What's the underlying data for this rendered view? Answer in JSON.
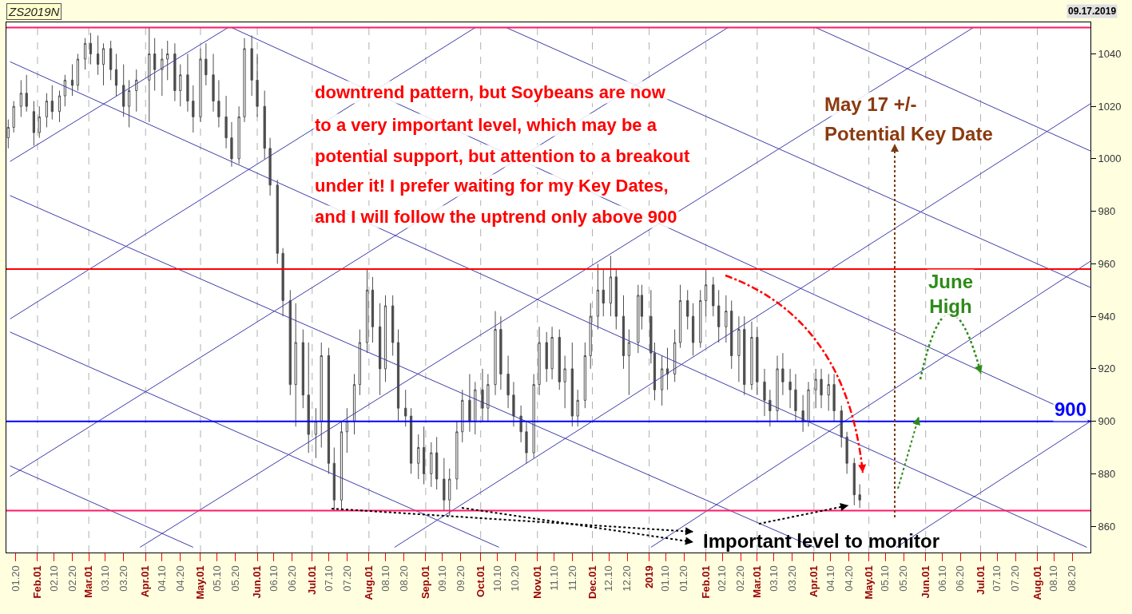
{
  "chart_data": {
    "type": "candlestick",
    "title": "ZS2019N",
    "annotations": [
      "downtrend pattern, but Soybeans are now",
      "to a very important level, which may be a",
      "potential support, but attention to a breakout",
      "under it! I prefer waiting for my Key Dates,",
      "and I will follow the uptrend only above 900",
      "May 17 +/-",
      "Potential Key Date",
      "June\nHigh",
      "Important level to monitor",
      "09.17.2019"
    ],
    "x": [
      "2018-01-16",
      "2018-01-19",
      "2018-01-23",
      "2018-01-26",
      "2018-01-30",
      "2018-02-02",
      "2018-02-06",
      "2018-02-09",
      "2018-02-13",
      "2018-02-16",
      "2018-02-20",
      "2018-02-23",
      "2018-02-27",
      "2018-03-02",
      "2018-03-06",
      "2018-03-09",
      "2018-03-13",
      "2018-03-16",
      "2018-03-20",
      "2018-03-23",
      "2018-03-27",
      "2018-04-03",
      "2018-04-06",
      "2018-04-10",
      "2018-04-13",
      "2018-04-17",
      "2018-04-20",
      "2018-04-24",
      "2018-04-27",
      "2018-05-01",
      "2018-05-04",
      "2018-05-08",
      "2018-05-11",
      "2018-05-15",
      "2018-05-18",
      "2018-05-22",
      "2018-05-25",
      "2018-05-29",
      "2018-06-01",
      "2018-06-05",
      "2018-06-08",
      "2018-06-12",
      "2018-06-15",
      "2018-06-19",
      "2018-06-22",
      "2018-06-26",
      "2018-06-29",
      "2018-07-03",
      "2018-07-06",
      "2018-07-10",
      "2018-07-13",
      "2018-07-17",
      "2018-07-20",
      "2018-07-24",
      "2018-07-27",
      "2018-07-31",
      "2018-08-03",
      "2018-08-07",
      "2018-08-10",
      "2018-08-14",
      "2018-08-17",
      "2018-08-21",
      "2018-08-24",
      "2018-08-28",
      "2018-08-31",
      "2018-09-04",
      "2018-09-07",
      "2018-09-11",
      "2018-09-14",
      "2018-09-18",
      "2018-09-21",
      "2018-09-25",
      "2018-09-28",
      "2018-10-02",
      "2018-10-05",
      "2018-10-09",
      "2018-10-12",
      "2018-10-16",
      "2018-10-19",
      "2018-10-23",
      "2018-10-26",
      "2018-10-30",
      "2018-11-02",
      "2018-11-06",
      "2018-11-09",
      "2018-11-13",
      "2018-11-16",
      "2018-11-20",
      "2018-11-23",
      "2018-11-27",
      "2018-11-30",
      "2018-12-04",
      "2018-12-07",
      "2018-12-11",
      "2018-12-14",
      "2018-12-18",
      "2018-12-21",
      "2018-12-26",
      "2018-12-28",
      "2019-01-02",
      "2019-01-04",
      "2019-01-08",
      "2019-01-11",
      "2019-01-15",
      "2019-01-18",
      "2019-01-22",
      "2019-01-25",
      "2019-01-29",
      "2019-02-01",
      "2019-02-05",
      "2019-02-08",
      "2019-02-12",
      "2019-02-15",
      "2019-02-19",
      "2019-02-22",
      "2019-02-26",
      "2019-03-01",
      "2019-03-05",
      "2019-03-08",
      "2019-03-12",
      "2019-03-15",
      "2019-03-19",
      "2019-03-22",
      "2019-03-26",
      "2019-03-29",
      "2019-04-02",
      "2019-04-05",
      "2019-04-09",
      "2019-04-12",
      "2019-04-16",
      "2019-04-19",
      "2019-04-23",
      "2019-04-26"
    ],
    "ohlc": [
      [
        1008,
        1015,
        1004,
        1012
      ],
      [
        1012,
        1022,
        1010,
        1020
      ],
      [
        1020,
        1030,
        1016,
        1025
      ],
      [
        1025,
        1032,
        1018,
        1020
      ],
      [
        1018,
        1022,
        1005,
        1010
      ],
      [
        1010,
        1020,
        1008,
        1016
      ],
      [
        1016,
        1025,
        1012,
        1022
      ],
      [
        1022,
        1028,
        1015,
        1018
      ],
      [
        1018,
        1026,
        1014,
        1024
      ],
      [
        1024,
        1032,
        1020,
        1030
      ],
      [
        1030,
        1036,
        1024,
        1028
      ],
      [
        1028,
        1040,
        1026,
        1038
      ],
      [
        1038,
        1046,
        1034,
        1044
      ],
      [
        1044,
        1048,
        1036,
        1040
      ],
      [
        1040,
        1047,
        1032,
        1036
      ],
      [
        1036,
        1044,
        1028,
        1042
      ],
      [
        1042,
        1045,
        1030,
        1034
      ],
      [
        1034,
        1040,
        1024,
        1028
      ],
      [
        1028,
        1036,
        1016,
        1020
      ],
      [
        1020,
        1030,
        1012,
        1026
      ],
      [
        1026,
        1034,
        1018,
        1030
      ],
      [
        1030,
        1050,
        1014,
        1040
      ],
      [
        1040,
        1046,
        1026,
        1034
      ],
      [
        1034,
        1042,
        1024,
        1038
      ],
      [
        1038,
        1045,
        1030,
        1040
      ],
      [
        1040,
        1044,
        1022,
        1026
      ],
      [
        1026,
        1036,
        1020,
        1032
      ],
      [
        1032,
        1040,
        1018,
        1022
      ],
      [
        1022,
        1028,
        1010,
        1016
      ],
      [
        1016,
        1042,
        1014,
        1038
      ],
      [
        1038,
        1044,
        1028,
        1032
      ],
      [
        1032,
        1040,
        1018,
        1022
      ],
      [
        1022,
        1030,
        1012,
        1016
      ],
      [
        1016,
        1024,
        1004,
        1008
      ],
      [
        1008,
        1014,
        997,
        1000
      ],
      [
        1000,
        1020,
        998,
        1016
      ],
      [
        1016,
        1046,
        1014,
        1042
      ],
      [
        1042,
        1047,
        1024,
        1030
      ],
      [
        1030,
        1040,
        1016,
        1020
      ],
      [
        1020,
        1026,
        1000,
        1004
      ],
      [
        1004,
        1008,
        986,
        990
      ],
      [
        990,
        992,
        960,
        964
      ],
      [
        964,
        966,
        940,
        946
      ],
      [
        946,
        950,
        910,
        914
      ],
      [
        914,
        945,
        898,
        930
      ],
      [
        930,
        935,
        905,
        910
      ],
      [
        910,
        930,
        888,
        895
      ],
      [
        895,
        905,
        886,
        900
      ],
      [
        900,
        930,
        890,
        925
      ],
      [
        925,
        928,
        880,
        884
      ],
      [
        884,
        890,
        866,
        870
      ],
      [
        870,
        900,
        866,
        896
      ],
      [
        896,
        905,
        888,
        900
      ],
      [
        900,
        918,
        895,
        914
      ],
      [
        914,
        935,
        910,
        930
      ],
      [
        930,
        958,
        926,
        950
      ],
      [
        950,
        955,
        930,
        936
      ],
      [
        936,
        945,
        910,
        920
      ],
      [
        920,
        948,
        915,
        944
      ],
      [
        944,
        948,
        925,
        930
      ],
      [
        930,
        935,
        900,
        905
      ],
      [
        905,
        912,
        898,
        902
      ],
      [
        902,
        905,
        880,
        884
      ],
      [
        884,
        895,
        878,
        890
      ],
      [
        890,
        898,
        876,
        880
      ],
      [
        880,
        892,
        875,
        888
      ],
      [
        888,
        894,
        874,
        878
      ],
      [
        878,
        886,
        866,
        870
      ],
      [
        870,
        882,
        864,
        878
      ],
      [
        878,
        900,
        874,
        896
      ],
      [
        896,
        912,
        892,
        908
      ],
      [
        908,
        918,
        896,
        900
      ],
      [
        900,
        915,
        895,
        912
      ],
      [
        912,
        920,
        900,
        905
      ],
      [
        905,
        918,
        900,
        914
      ],
      [
        914,
        942,
        910,
        935
      ],
      [
        935,
        940,
        912,
        918
      ],
      [
        918,
        925,
        905,
        910
      ],
      [
        910,
        915,
        898,
        902
      ],
      [
        902,
        906,
        892,
        896
      ],
      [
        896,
        900,
        884,
        888
      ],
      [
        888,
        918,
        886,
        914
      ],
      [
        914,
        936,
        910,
        930
      ],
      [
        930,
        934,
        915,
        920
      ],
      [
        920,
        936,
        916,
        932
      ],
      [
        932,
        935,
        912,
        915
      ],
      [
        915,
        925,
        905,
        920
      ],
      [
        920,
        930,
        898,
        902
      ],
      [
        902,
        912,
        898,
        908
      ],
      [
        908,
        930,
        905,
        925
      ],
      [
        925,
        945,
        920,
        940
      ],
      [
        940,
        960,
        935,
        950
      ],
      [
        950,
        958,
        940,
        945
      ],
      [
        945,
        963,
        940,
        955
      ],
      [
        955,
        958,
        935,
        940
      ],
      [
        940,
        948,
        920,
        925
      ],
      [
        925,
        935,
        910,
        930
      ],
      [
        930,
        952,
        926,
        948
      ],
      [
        948,
        952,
        935,
        940
      ],
      [
        940,
        950,
        922,
        926
      ],
      [
        926,
        930,
        908,
        912
      ],
      [
        912,
        925,
        906,
        920
      ],
      [
        920,
        928,
        912,
        918
      ],
      [
        918,
        935,
        915,
        930
      ],
      [
        930,
        952,
        928,
        946
      ],
      [
        946,
        950,
        935,
        940
      ],
      [
        940,
        945,
        925,
        930
      ],
      [
        930,
        950,
        928,
        946
      ],
      [
        946,
        958,
        940,
        952
      ],
      [
        952,
        955,
        940,
        944
      ],
      [
        944,
        950,
        930,
        936
      ],
      [
        936,
        948,
        930,
        942
      ],
      [
        942,
        946,
        920,
        925
      ],
      [
        925,
        940,
        915,
        935
      ],
      [
        935,
        940,
        910,
        914
      ],
      [
        914,
        938,
        912,
        932
      ],
      [
        932,
        936,
        910,
        915
      ],
      [
        915,
        920,
        902,
        908
      ],
      [
        908,
        912,
        898,
        904
      ],
      [
        904,
        925,
        900,
        920
      ],
      [
        920,
        926,
        910,
        915
      ],
      [
        915,
        920,
        905,
        912
      ],
      [
        912,
        918,
        900,
        904
      ],
      [
        904,
        910,
        896,
        900
      ],
      [
        900,
        915,
        898,
        912
      ],
      [
        912,
        920,
        905,
        916
      ],
      [
        916,
        920,
        905,
        910
      ],
      [
        910,
        918,
        904,
        914
      ],
      [
        914,
        918,
        900,
        904
      ],
      [
        904,
        906,
        890,
        894
      ],
      [
        894,
        896,
        880,
        884
      ],
      [
        884,
        886,
        868,
        872
      ],
      [
        872,
        876,
        867,
        870
      ]
    ],
    "color": "#4d4d4d",
    "series": [
      {
        "type": "line",
        "color": "#3c3ca8",
        "x": [
          "2018-05-18",
          "2019-08-30"
        ],
        "values": [
          1050,
          900
        ]
      },
      {
        "type": "line",
        "color": "#3c3ca8",
        "x": [
          "2018-01-17",
          "2019-08-28"
        ],
        "values": [
          1037,
          852
        ]
      },
      {
        "type": "line",
        "color": "#3c3ca8",
        "x": [
          "2018-01-17",
          "2019-04-01"
        ],
        "values": [
          986,
          852
        ]
      },
      {
        "type": "line",
        "color": "#3c3ca8",
        "x": [
          "2018-01-17",
          "2018-10-11"
        ],
        "values": [
          934,
          852
        ]
      },
      {
        "type": "line",
        "color": "#3c3ca8",
        "x": [
          "2018-01-17",
          "2018-04-27"
        ],
        "values": [
          883,
          852
        ]
      },
      {
        "type": "line",
        "color": "#3c3ca8",
        "x": [
          "2019-04-02",
          "2019-08-30"
        ],
        "values": [
          1050,
          1003
        ]
      },
      {
        "type": "line",
        "color": "#3c3ca8",
        "x": [
          "2018-10-15",
          "2019-08-30"
        ],
        "values": [
          1050,
          951
        ]
      },
      {
        "type": "line",
        "color": "#3c3ca8",
        "x": [
          "2018-01-17",
          "2018-05-16"
        ],
        "values": [
          999,
          1050
        ]
      },
      {
        "type": "line",
        "color": "#3c3ca8",
        "x": [
          "2018-01-17",
          "2018-09-28"
        ],
        "values": [
          939,
          1050
        ]
      },
      {
        "type": "line",
        "color": "#3c3ca8",
        "x": [
          "2018-01-17",
          "2019-02-13"
        ],
        "values": [
          879,
          1050
        ]
      },
      {
        "type": "line",
        "color": "#3c3ca8",
        "x": [
          "2018-03-29",
          "2019-06-27"
        ],
        "values": [
          852,
          1050
        ]
      },
      {
        "type": "line",
        "color": "#3c3ca8",
        "x": [
          "2018-08-15",
          "2019-08-30"
        ],
        "values": [
          852,
          1021
        ]
      },
      {
        "type": "line",
        "color": "#3c3ca8",
        "x": [
          "2019-01-02",
          "2019-08-30"
        ],
        "values": [
          852,
          961
        ]
      },
      {
        "type": "line",
        "color": "#3c3ca8",
        "x": [
          "2019-05-16",
          "2019-08-30"
        ],
        "values": [
          852,
          900
        ]
      }
    ],
    "ref_lines": [
      {
        "axis": "y",
        "value": 1050,
        "color": "#ff1a66"
      },
      {
        "axis": "y",
        "value": 958,
        "color": "#ff0000"
      },
      {
        "axis": "y",
        "value": 900,
        "label": "900",
        "color": "#0000ff"
      },
      {
        "axis": "y",
        "value": 866,
        "color": "#ff1a66"
      }
    ],
    "xlim": [
      "2018-01-15",
      "2019-08-30"
    ],
    "xticks": [
      {
        "value": "2018-01-20",
        "label": "01.20"
      },
      {
        "value": "2018-02-01",
        "label": "Feb.01"
      },
      {
        "value": "2018-02-10",
        "label": "02.10"
      },
      {
        "value": "2018-02-20",
        "label": "02.20"
      },
      {
        "value": "2018-03-01",
        "label": "Mar.01"
      },
      {
        "value": "2018-03-10",
        "label": "03.10"
      },
      {
        "value": "2018-03-20",
        "label": "03.20"
      },
      {
        "value": "2018-04-01",
        "label": "Apr.01"
      },
      {
        "value": "2018-04-10",
        "label": "04.10"
      },
      {
        "value": "2018-04-20",
        "label": "04.20"
      },
      {
        "value": "2018-05-01",
        "label": "May.01"
      },
      {
        "value": "2018-05-10",
        "label": "05.10"
      },
      {
        "value": "2018-05-20",
        "label": "05.20"
      },
      {
        "value": "2018-06-01",
        "label": "Jun.01"
      },
      {
        "value": "2018-06-10",
        "label": "06.10"
      },
      {
        "value": "2018-06-20",
        "label": "06.20"
      },
      {
        "value": "2018-07-01",
        "label": "Jul.01"
      },
      {
        "value": "2018-07-10",
        "label": "07.10"
      },
      {
        "value": "2018-07-20",
        "label": "07.20"
      },
      {
        "value": "2018-08-01",
        "label": "Aug.01"
      },
      {
        "value": "2018-08-10",
        "label": "08.10"
      },
      {
        "value": "2018-08-20",
        "label": "08.20"
      },
      {
        "value": "2018-09-01",
        "label": "Sep.01"
      },
      {
        "value": "2018-09-10",
        "label": "09.10"
      },
      {
        "value": "2018-09-20",
        "label": "09.20"
      },
      {
        "value": "2018-10-01",
        "label": "Oct.01"
      },
      {
        "value": "2018-10-10",
        "label": "10.10"
      },
      {
        "value": "2018-10-20",
        "label": "10.20"
      },
      {
        "value": "2018-11-01",
        "label": "Nov.01"
      },
      {
        "value": "2018-11-10",
        "label": "11.10"
      },
      {
        "value": "2018-11-20",
        "label": "11.20"
      },
      {
        "value": "2018-12-01",
        "label": "Dec.01"
      },
      {
        "value": "2018-12-10",
        "label": "12.10"
      },
      {
        "value": "2018-12-20",
        "label": "12.20"
      },
      {
        "value": "2019-01-01",
        "label": "2019"
      },
      {
        "value": "2019-01-10",
        "label": "01.10"
      },
      {
        "value": "2019-01-20",
        "label": "01.20"
      },
      {
        "value": "2019-02-01",
        "label": "Feb.01"
      },
      {
        "value": "2019-02-10",
        "label": "02.10"
      },
      {
        "value": "2019-02-20",
        "label": "02.20"
      },
      {
        "value": "2019-03-01",
        "label": "Mar.01"
      },
      {
        "value": "2019-03-10",
        "label": "03.10"
      },
      {
        "value": "2019-03-20",
        "label": "03.20"
      },
      {
        "value": "2019-04-01",
        "label": "Apr.01"
      },
      {
        "value": "2019-04-10",
        "label": "04.10"
      },
      {
        "value": "2019-04-20",
        "label": "04.20"
      },
      {
        "value": "2019-05-01",
        "label": "May.01"
      },
      {
        "value": "2019-05-10",
        "label": "05.10"
      },
      {
        "value": "2019-05-20",
        "label": "05.20"
      },
      {
        "value": "2019-06-01",
        "label": "Jun.01"
      },
      {
        "value": "2019-06-10",
        "label": "06.10"
      },
      {
        "value": "2019-06-20",
        "label": "06.20"
      },
      {
        "value": "2019-07-01",
        "label": "Jul.01"
      },
      {
        "value": "2019-07-10",
        "label": "07.10"
      },
      {
        "value": "2019-07-20",
        "label": "07.20"
      },
      {
        "value": "2019-08-01",
        "label": "Aug.01"
      },
      {
        "value": "2019-08-10",
        "label": "08.10"
      },
      {
        "value": "2019-08-20",
        "label": "08.20"
      }
    ],
    "ylim": [
      850,
      1052
    ],
    "yticks": [
      860,
      880,
      900,
      920,
      940,
      960,
      980,
      1000,
      1020,
      1040
    ],
    "grid": "x"
  }
}
